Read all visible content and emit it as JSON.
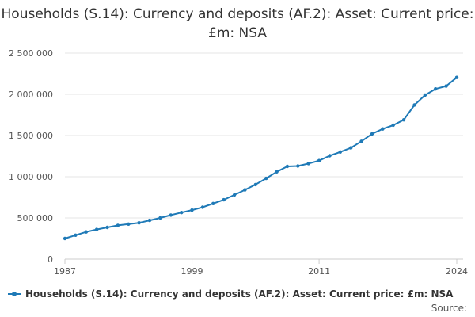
{
  "chart_data": {
    "type": "line",
    "title": "Households (S.14): Currency and deposits (AF.2): Asset: Current price: £m: NSA",
    "xlabel": "",
    "ylabel": "",
    "x": [
      1987,
      1988,
      1989,
      1990,
      1991,
      1992,
      1993,
      1994,
      1995,
      1996,
      1997,
      1998,
      1999,
      2000,
      2001,
      2002,
      2003,
      2004,
      2005,
      2006,
      2007,
      2008,
      2009,
      2010,
      2011,
      2012,
      2013,
      2014,
      2015,
      2016,
      2017,
      2018,
      2019,
      2020,
      2021,
      2022,
      2023,
      2024
    ],
    "series": [
      {
        "name": "Households (S.14): Currency and deposits (AF.2): Asset: Current price: £m: NSA",
        "color": "#1f7ab7",
        "values": [
          250000,
          290000,
          330000,
          360000,
          385000,
          410000,
          425000,
          440000,
          470000,
          500000,
          535000,
          565000,
          595000,
          630000,
          675000,
          720000,
          780000,
          840000,
          905000,
          980000,
          1060000,
          1125000,
          1130000,
          1160000,
          1195000,
          1255000,
          1300000,
          1350000,
          1430000,
          1520000,
          1580000,
          1625000,
          1690000,
          1870000,
          1990000,
          2065000,
          2100000,
          2205000
        ]
      }
    ],
    "ylim": [
      0,
      2500000
    ],
    "yticks": [
      0,
      500000,
      1000000,
      1500000,
      2000000,
      2500000
    ],
    "ytick_labels": [
      "0",
      "500 000",
      "1 000 000",
      "1 500 000",
      "2 000 000",
      "2 500 000"
    ],
    "xticks": [
      1987,
      1999,
      2011,
      2024
    ],
    "xtick_labels": [
      "1987",
      "1999",
      "2011",
      "2024"
    ],
    "xlim": [
      1987,
      2024
    ],
    "grid": true,
    "legend_position": "bottom"
  },
  "legend": {
    "label": "Households (S.14): Currency and deposits (AF.2): Asset: Current price: £m: NSA"
  },
  "source": {
    "label": "Source:"
  }
}
